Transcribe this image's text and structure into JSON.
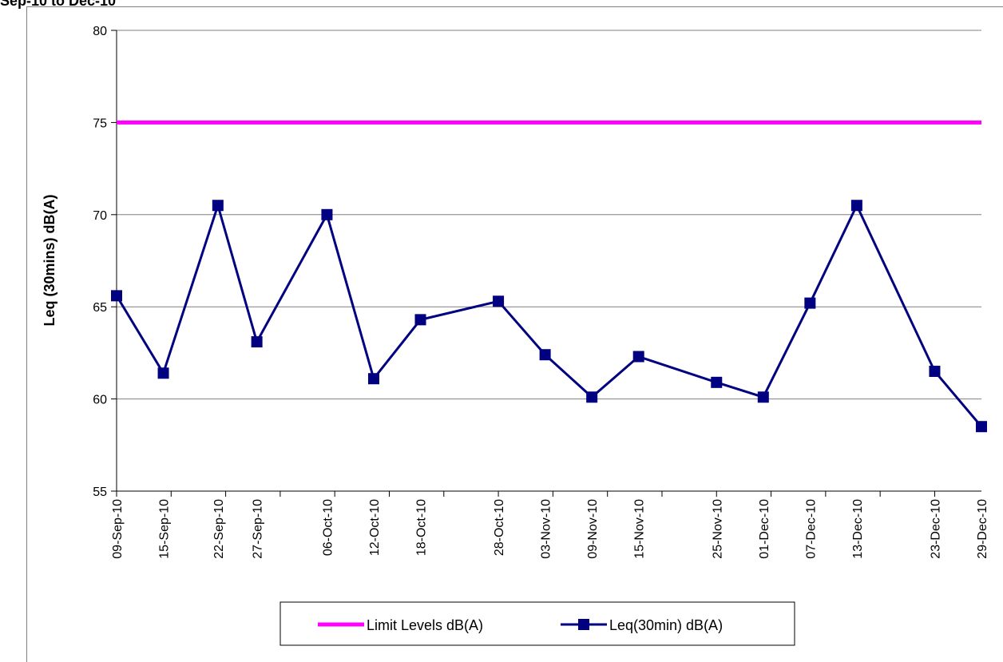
{
  "header": {
    "title": "Sep-10 to Dec-10"
  },
  "chart_data": {
    "type": "line",
    "title": "",
    "ylabel": "Leq (30mins) dB(A)",
    "xlabel": "",
    "ylim": [
      55,
      80
    ],
    "yticks": [
      55,
      60,
      65,
      70,
      75,
      80
    ],
    "x": [
      "09-Sep-10",
      "15-Sep-10",
      "22-Sep-10",
      "27-Sep-10",
      "06-Oct-10",
      "12-Oct-10",
      "18-Oct-10",
      "28-Oct-10",
      "03-Nov-10",
      "09-Nov-10",
      "15-Nov-10",
      "25-Nov-10",
      "01-Dec-10",
      "07-Dec-10",
      "13-Dec-10",
      "23-Dec-10",
      "29-Dec-10"
    ],
    "grid": true,
    "legend_position": "bottom",
    "series": [
      {
        "name": "Limit Levels dB(A)",
        "color": "#FF00FF",
        "marker": "none",
        "values": [
          75,
          75,
          75,
          75,
          75,
          75,
          75,
          75,
          75,
          75,
          75,
          75,
          75,
          75,
          75,
          75,
          75
        ]
      },
      {
        "name": "Leq(30min) dB(A)",
        "color": "#000080",
        "marker": "square",
        "values": [
          65.6,
          61.4,
          70.5,
          63.1,
          70.0,
          61.1,
          64.3,
          65.3,
          62.4,
          60.1,
          62.3,
          60.9,
          60.1,
          65.2,
          70.5,
          61.5,
          58.5
        ]
      }
    ]
  }
}
